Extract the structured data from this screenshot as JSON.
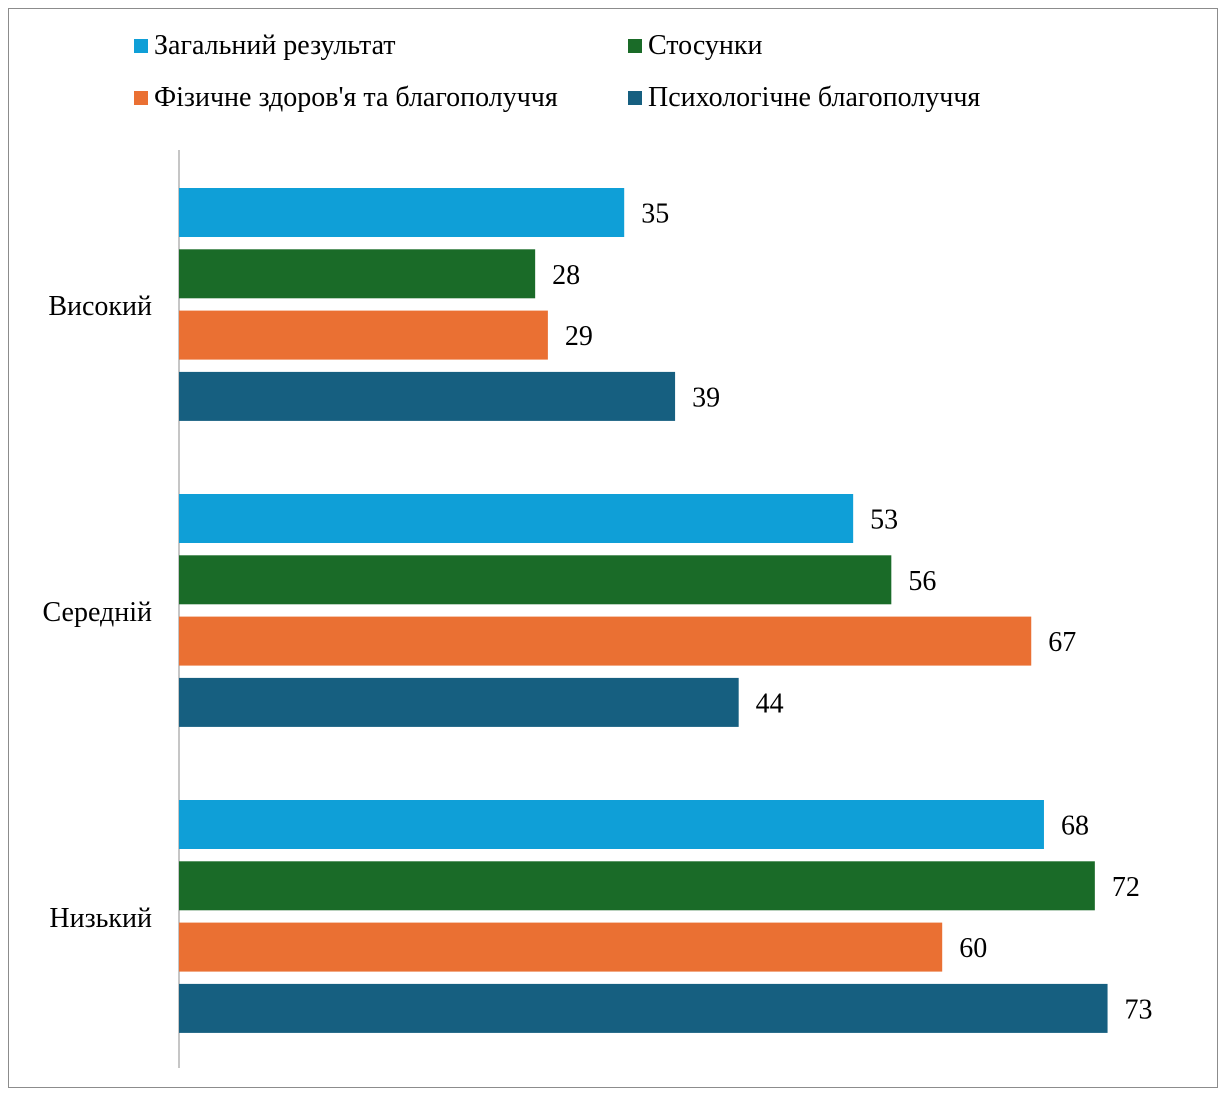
{
  "chart_data": {
    "type": "bar",
    "orientation": "horizontal",
    "categories": [
      "Високий",
      "Середній",
      "Низький"
    ],
    "series": [
      {
        "name": "Загальний результат",
        "color": "#0f9fd7",
        "values": [
          35,
          53,
          68
        ]
      },
      {
        "name": "Стосунки",
        "color": "#1a6b28",
        "values": [
          28,
          56,
          72
        ]
      },
      {
        "name": "Фізичне здоров'я та благополуччя",
        "color": "#ea7033",
        "values": [
          29,
          67,
          60
        ]
      },
      {
        "name": "Психологічне благополуччя",
        "color": "#165f80",
        "values": [
          39,
          44,
          73
        ]
      }
    ],
    "title": "",
    "xlabel": "",
    "ylabel": "",
    "xlim": [
      0,
      80
    ],
    "grid": false,
    "legend_position": "top",
    "data_labels": true
  }
}
